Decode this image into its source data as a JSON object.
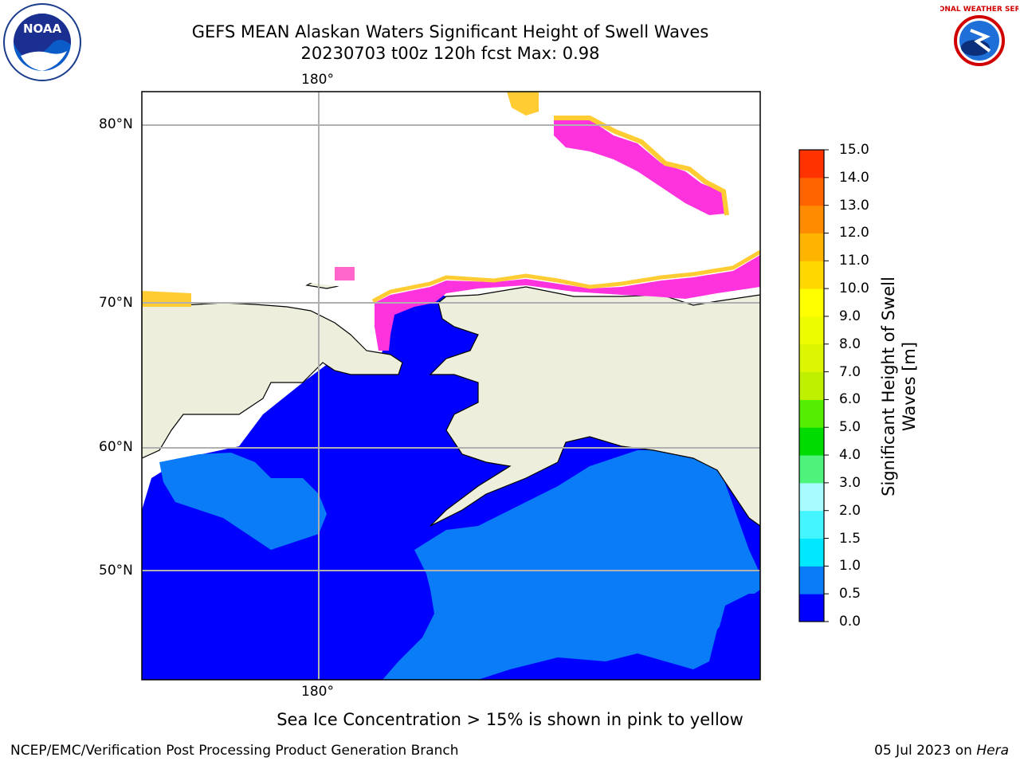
{
  "title_line1": "GEFS MEAN Alaskan Waters Significant Height of Swell Waves",
  "title_line2": "20230703 t00z 120h fcst   Max: 0.98",
  "map": {
    "lon_label_top": "180°",
    "lon_label_bottom": "180°",
    "lat_labels": [
      "80°N",
      "70°N",
      "60°N",
      "50°N"
    ],
    "colors": {
      "land": "#eeeedc",
      "ocean_0_05": "#0000ff",
      "ocean_05_1": "#0a7cf8",
      "ice_pink": "#ff00ff",
      "ice_yellow": "#ffcc33"
    }
  },
  "colorbar": {
    "ticks": [
      "15.0",
      "14.0",
      "13.0",
      "12.0",
      "11.0",
      "10.0",
      "9.0",
      "8.0",
      "7.0",
      "6.0",
      "5.0",
      "4.0",
      "3.0",
      "2.0",
      "1.5",
      "1.0",
      "0.5",
      "0.0"
    ],
    "colors": [
      "#0000ff",
      "#0a7cf8",
      "#00e8ff",
      "#44f4ff",
      "#a6fcff",
      "#4df37a",
      "#00dc00",
      "#55ee00",
      "#bff000",
      "#dcf500",
      "#eefc00",
      "#ffff00",
      "#ffd800",
      "#ffb400",
      "#ff8c00",
      "#ff6400",
      "#ff3200",
      "#ff0000"
    ],
    "label": "Significant Height of Swell Waves [m]"
  },
  "sea_ice_note": "Sea Ice Concentration > 15% is shown in pink to yellow",
  "footer_left": "NCEP/EMC/Verification Post Processing Product Generation Branch",
  "footer_date": "05 Jul 2023 on ",
  "footer_machine": "Hera",
  "logos": {
    "noaa": "NOAA",
    "nws": "NATIONAL WEATHER SERVICE"
  }
}
